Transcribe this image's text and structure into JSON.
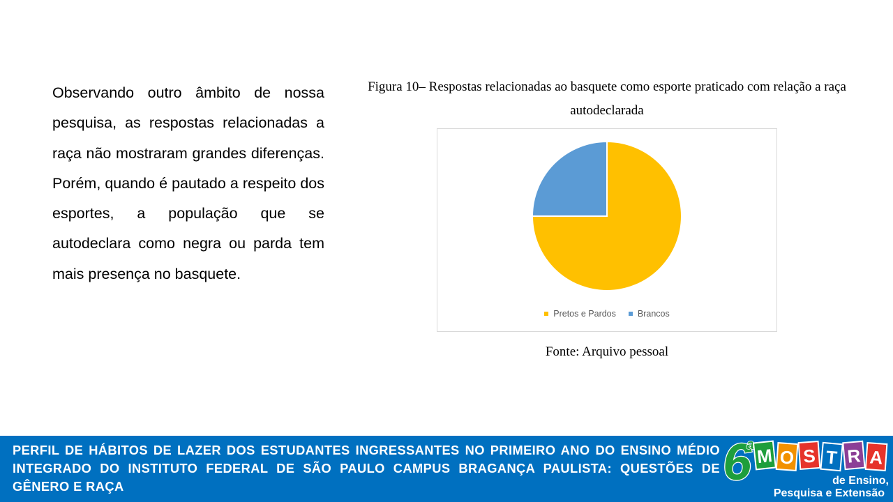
{
  "body_text": "Observando outro âmbito de nossa pesquisa, as respostas relacionadas a raça não mostraram grandes diferenças. Porém, quando é pautado a respeito dos esportes, a população que se autodeclara como negra ou parda tem mais presença no basquete.",
  "figure": {
    "caption_line1": "Figura 10– Respostas relacionadas ao basquete como esporte praticado com relação a raça",
    "caption_line2": "autodeclarada",
    "source": "Fonte: Arquivo pessoal"
  },
  "chart_data": {
    "type": "pie",
    "title": "",
    "categories": [
      "Pretos e Pardos",
      "Brancos"
    ],
    "values": [
      75,
      25
    ],
    "colors": [
      "#ffc000",
      "#5b9bd5"
    ],
    "legend_position": "bottom"
  },
  "footer": {
    "title": "PERFIL DE HÁBITOS DE LAZER DOS ESTUDANTES INGRESSANTES NO PRIMEIRO ANO DO ENSINO MÉDIO INTEGRADO DO INSTITUTO FEDERAL DE SÃO PAULO CAMPUS BRAGANÇA PAULISTA: QUESTÕES DE GÊNERO E RAÇA"
  },
  "logo": {
    "number": "6",
    "ordinal": "a",
    "letters": [
      "M",
      "O",
      "S",
      "T",
      "R",
      "A"
    ],
    "letter_colors": [
      "#1e9e3c",
      "#f29100",
      "#e6332a",
      "#0070c0",
      "#8b3f96",
      "#e6332a"
    ],
    "subtitle_line1": "de Ensino,",
    "subtitle_line2": "Pesquisa e Extensão"
  }
}
